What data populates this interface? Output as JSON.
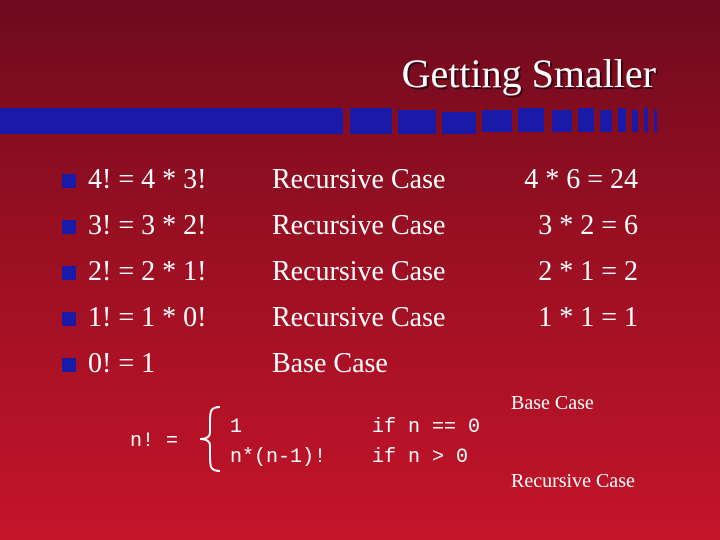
{
  "slide": {
    "title": "Getting Smaller",
    "bullets": [
      {
        "equation": "4! = 4 * 3!",
        "case": "Recursive Case",
        "calc": "4 * 6 = 24"
      },
      {
        "equation": "3! = 3 * 2!",
        "case": "Recursive Case",
        "calc": "3 * 2 = 6"
      },
      {
        "equation": "2! = 2 * 1!",
        "case": "Recursive Case",
        "calc": "2 * 1 = 2"
      },
      {
        "equation": "1! = 1 * 0!",
        "case": "Recursive Case",
        "calc": "1 * 1 = 1"
      },
      {
        "equation": "0! = 1",
        "case": "Base Case",
        "calc": ""
      }
    ],
    "bullet_glyph": "n",
    "definition": {
      "lhs": "n! =",
      "cases": [
        {
          "expr": "1",
          "condition": "if n == 0",
          "annotation": "Base Case"
        },
        {
          "expr": "n*(n-1)!",
          "condition": "if n > 0",
          "annotation": "Recursive Case"
        }
      ]
    }
  },
  "colors": {
    "background_top": "#6e0a1e",
    "background_bottom": "#c4142a",
    "accent": "#1a1aa8",
    "text": "#ffffff"
  }
}
